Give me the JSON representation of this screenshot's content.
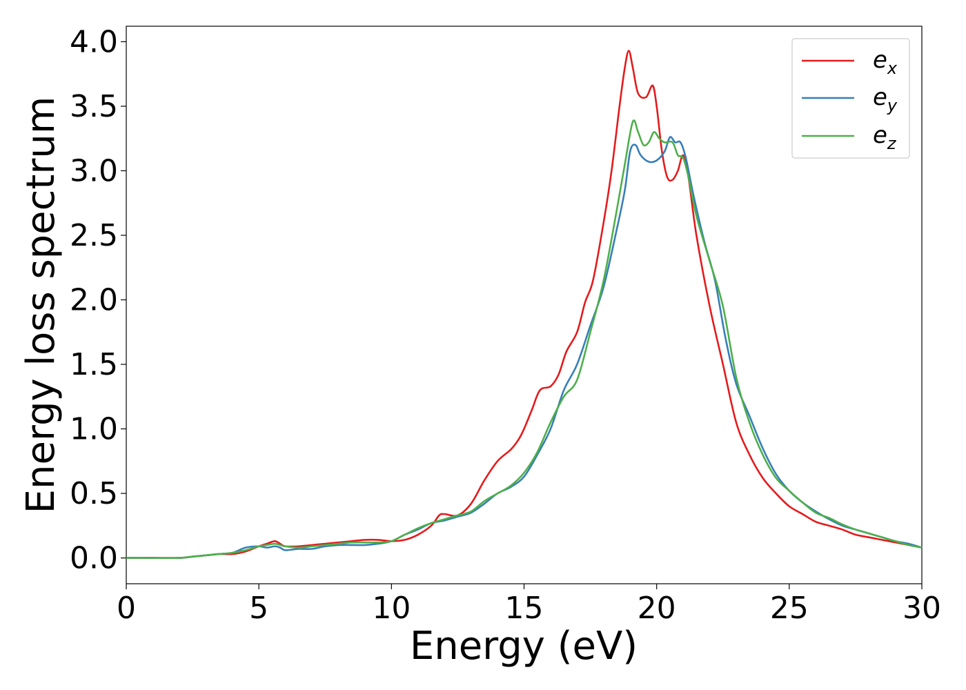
{
  "chart_data": {
    "type": "line",
    "title": "",
    "xlabel": "Energy (eV)",
    "ylabel": "Energy loss spectrum",
    "xlim": [
      0,
      30
    ],
    "ylim": [
      -0.2,
      4.12
    ],
    "xticks": [
      0,
      5,
      10,
      15,
      20,
      25,
      30
    ],
    "xtick_labels": [
      "0",
      "5",
      "10",
      "15",
      "20",
      "25",
      "30"
    ],
    "yticks": [
      0.0,
      0.5,
      1.0,
      1.5,
      2.0,
      2.5,
      3.0,
      3.5,
      4.0
    ],
    "ytick_labels": [
      "0.0",
      "0.5",
      "1.0",
      "1.5",
      "2.0",
      "2.5",
      "3.0",
      "3.5",
      "4.0"
    ],
    "grid": false,
    "legend_position": "top-right",
    "series": [
      {
        "name": "e_x",
        "label_main": "e",
        "label_sub": "x",
        "color": "#e41a1c",
        "x": [
          0,
          1,
          2,
          2.5,
          3,
          3.5,
          4,
          4.5,
          5,
          5.3,
          5.6,
          5.8,
          6,
          6.5,
          7,
          7.5,
          8,
          8.5,
          9,
          9.5,
          10,
          10.5,
          11,
          11.5,
          11.8,
          12,
          12.5,
          13,
          13.5,
          14,
          14.5,
          14.8,
          15,
          15.3,
          15.6,
          16,
          16.3,
          16.6,
          17,
          17.3,
          17.6,
          18,
          18.3,
          18.6,
          18.8,
          18.95,
          19.1,
          19.3,
          19.6,
          19.85,
          20,
          20.2,
          20.4,
          20.6,
          20.8,
          21,
          21.2,
          21.5,
          22,
          22.5,
          23,
          23.5,
          24,
          24.5,
          25,
          25.5,
          26,
          26.5,
          27,
          27.5,
          28,
          28.5,
          29,
          29.5,
          30
        ],
        "y": [
          0,
          0,
          0,
          0.01,
          0.02,
          0.03,
          0.03,
          0.05,
          0.09,
          0.11,
          0.13,
          0.11,
          0.09,
          0.09,
          0.1,
          0.11,
          0.12,
          0.13,
          0.14,
          0.14,
          0.13,
          0.14,
          0.18,
          0.25,
          0.33,
          0.34,
          0.33,
          0.42,
          0.6,
          0.75,
          0.84,
          0.92,
          1.0,
          1.15,
          1.3,
          1.33,
          1.42,
          1.6,
          1.75,
          1.98,
          2.15,
          2.6,
          3.0,
          3.5,
          3.8,
          3.93,
          3.8,
          3.6,
          3.57,
          3.66,
          3.5,
          3.15,
          2.95,
          2.93,
          3.0,
          3.12,
          2.95,
          2.5,
          1.95,
          1.5,
          1.05,
          0.8,
          0.62,
          0.5,
          0.4,
          0.34,
          0.28,
          0.25,
          0.22,
          0.18,
          0.16,
          0.14,
          0.12,
          0.1,
          0.08
        ]
      },
      {
        "name": "e_y",
        "label_main": "e",
        "label_sub": "y",
        "color": "#377eb8",
        "x": [
          0,
          1,
          2,
          2.5,
          3,
          3.5,
          4,
          4.5,
          5,
          5.3,
          5.6,
          5.8,
          6,
          6.5,
          7,
          7.5,
          8,
          8.5,
          9,
          9.5,
          10,
          10.5,
          11,
          11.5,
          12,
          12.5,
          13,
          13.5,
          14,
          14.5,
          15,
          15.5,
          16,
          16.5,
          17,
          17.5,
          18,
          18.5,
          18.8,
          19,
          19.2,
          19.4,
          19.7,
          20,
          20.3,
          20.5,
          20.7,
          20.9,
          21.1,
          21.4,
          21.8,
          22.2,
          22.6,
          23,
          23.5,
          24,
          24.5,
          25,
          25.5,
          26,
          26.5,
          27,
          27.5,
          28,
          28.5,
          29,
          29.5,
          30
        ],
        "y": [
          0,
          0,
          0,
          0.01,
          0.02,
          0.03,
          0.04,
          0.08,
          0.09,
          0.08,
          0.09,
          0.08,
          0.06,
          0.07,
          0.07,
          0.09,
          0.1,
          0.1,
          0.1,
          0.11,
          0.13,
          0.18,
          0.22,
          0.27,
          0.29,
          0.32,
          0.35,
          0.42,
          0.5,
          0.55,
          0.63,
          0.8,
          1.0,
          1.3,
          1.5,
          1.8,
          2.1,
          2.55,
          2.85,
          3.15,
          3.2,
          3.12,
          3.07,
          3.08,
          3.15,
          3.26,
          3.22,
          3.22,
          3.1,
          2.8,
          2.45,
          2.15,
          1.7,
          1.35,
          1.1,
          0.85,
          0.65,
          0.52,
          0.43,
          0.36,
          0.3,
          0.25,
          0.22,
          0.19,
          0.16,
          0.13,
          0.11,
          0.08
        ]
      },
      {
        "name": "e_z",
        "label_main": "e",
        "label_sub": "z",
        "color": "#4daf4a",
        "x": [
          0,
          1,
          2,
          2.5,
          3,
          3.5,
          4,
          4.5,
          5,
          5.3,
          5.6,
          5.8,
          6,
          6.5,
          7,
          7.5,
          8,
          8.5,
          9,
          9.5,
          10,
          10.5,
          11,
          11.5,
          12,
          12.5,
          13,
          13.5,
          14,
          14.5,
          15,
          15.5,
          16,
          16.5,
          17,
          17.5,
          18,
          18.5,
          18.8,
          19.1,
          19.3,
          19.5,
          19.7,
          19.9,
          20.1,
          20.3,
          20.6,
          20.8,
          21,
          21.2,
          21.5,
          22,
          22.5,
          23,
          23.5,
          24,
          24.5,
          25,
          25.5,
          26,
          26.5,
          27,
          27.5,
          28,
          28.5,
          29,
          29.5,
          30
        ],
        "y": [
          0,
          0,
          0,
          0.01,
          0.02,
          0.03,
          0.04,
          0.06,
          0.09,
          0.1,
          0.11,
          0.1,
          0.09,
          0.08,
          0.09,
          0.1,
          0.11,
          0.12,
          0.12,
          0.12,
          0.13,
          0.18,
          0.23,
          0.27,
          0.3,
          0.33,
          0.36,
          0.44,
          0.5,
          0.56,
          0.66,
          0.82,
          1.05,
          1.25,
          1.38,
          1.75,
          2.15,
          2.7,
          3.05,
          3.38,
          3.3,
          3.2,
          3.22,
          3.3,
          3.25,
          3.22,
          3.22,
          3.12,
          3.1,
          2.95,
          2.65,
          2.3,
          1.95,
          1.4,
          1.05,
          0.8,
          0.62,
          0.52,
          0.43,
          0.35,
          0.31,
          0.26,
          0.22,
          0.19,
          0.16,
          0.13,
          0.1,
          0.08
        ]
      }
    ]
  }
}
